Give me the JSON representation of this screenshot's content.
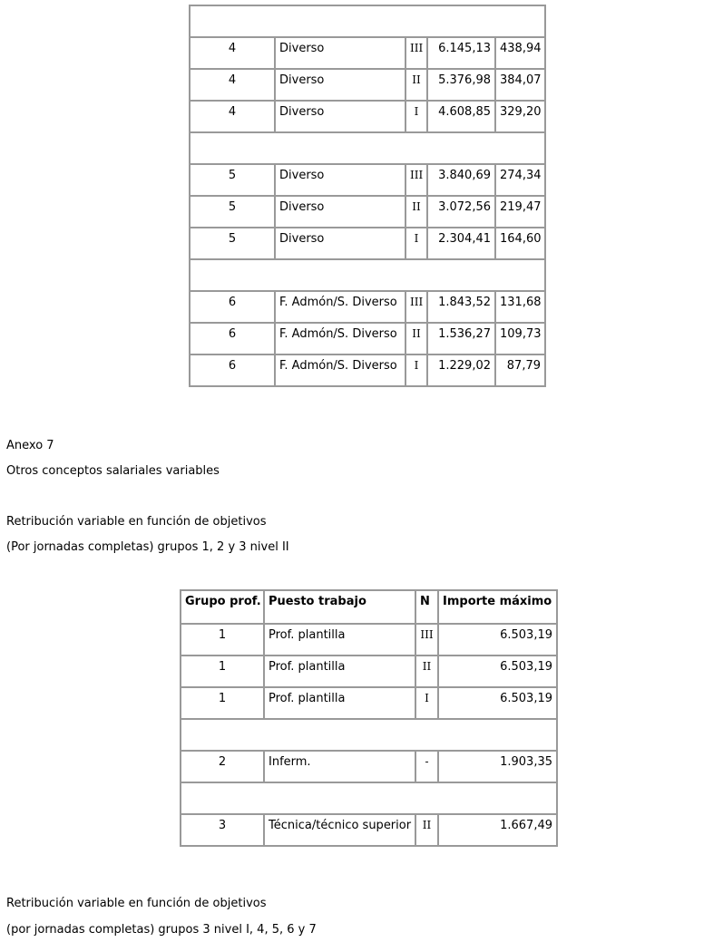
{
  "table1": {
    "groups": [
      [
        [
          "4",
          "Diverso",
          "III",
          "6.145,13",
          "438,94"
        ],
        [
          "4",
          "Diverso",
          "II",
          "5.376,98",
          "384,07"
        ],
        [
          "4",
          "Diverso",
          "I",
          "4.608,85",
          "329,20"
        ]
      ],
      [
        [
          "5",
          "Diverso",
          "III",
          "3.840,69",
          "274,34"
        ],
        [
          "5",
          "Diverso",
          "II",
          "3.072,56",
          "219,47"
        ],
        [
          "5",
          "Diverso",
          "I",
          "2.304,41",
          "164,60"
        ]
      ],
      [
        [
          "6",
          "F. Admón/S. Diverso",
          "III",
          "1.843,52",
          "131,68"
        ],
        [
          "6",
          "F. Admón/S. Diverso",
          "II",
          "1.536,27",
          "109,73"
        ],
        [
          "6",
          "F. Admón/S. Diverso",
          "I",
          "1.229,02",
          "87,79"
        ]
      ]
    ]
  },
  "annex": {
    "title": "Anexo 7",
    "subtitle": "Otros conceptos salariales variables"
  },
  "section1": {
    "line1": "Retribución variable en función de objetivos",
    "line2": "(Por jornadas completas) grupos 1, 2 y 3 nivel II"
  },
  "table2": {
    "header": [
      "Grupo prof.",
      "Puesto trabajo",
      "N",
      "Importe máximo"
    ],
    "groups": [
      [
        [
          "1",
          "Prof. plantilla",
          "III",
          "6.503,19"
        ],
        [
          "1",
          "Prof. plantilla",
          "II",
          "6.503,19"
        ],
        [
          "1",
          "Prof. plantilla",
          "I",
          "6.503,19"
        ]
      ],
      [
        [
          "2",
          "Inferm.",
          "-",
          "1.903,35"
        ]
      ],
      [
        [
          "3",
          "Técnica/técnico superior",
          "II",
          "1.667,49"
        ]
      ]
    ]
  },
  "section2": {
    "line1": "Retribución variable en función de objetivos",
    "line2": "(por jornadas completas) grupos 3 nivel I, 4, 5, 6 y 7"
  }
}
